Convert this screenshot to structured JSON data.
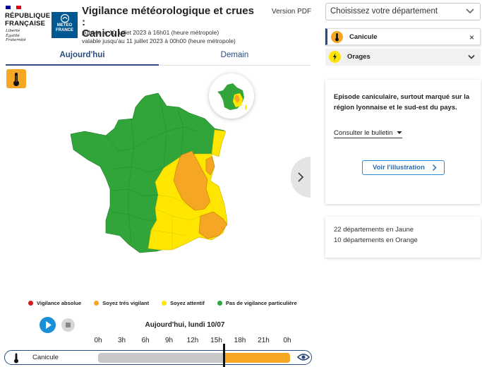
{
  "header": {
    "rf_title_1": "RÉPUBLIQUE",
    "rf_title_2": "FRANÇAISE",
    "rf_motto_1": "Liberté",
    "rf_motto_2": "Égalité",
    "rf_motto_3": "Fraternité",
    "mf_logo_1": "METEO",
    "mf_logo_2": "FRANCE",
    "title_1": "Vigilance météorologique et crues :",
    "title_2": "Canicule",
    "published": "publiée le 10 juillet 2023 à 16h01 (heure métropole)",
    "valid_until": "valable jusqu'au 11 juillet 2023 à 00h00 (heure métropole)",
    "pdf_link": "Version PDF"
  },
  "tabs": [
    {
      "label": "Aujourd'hui",
      "active": true
    },
    {
      "label": "Demain",
      "active": false
    }
  ],
  "colors": {
    "green": "#31a53a",
    "yellow": "#ffe600",
    "orange": "#f5a623",
    "red": "#d01c1f",
    "accent": "#2b4c7e"
  },
  "legend": [
    {
      "label": "Vigilance absolue",
      "color": "#d01c1f"
    },
    {
      "label": "Soyez très vigilant",
      "color": "#f5a623"
    },
    {
      "label": "Soyez attentif",
      "color": "#ffe600"
    },
    {
      "label": "Pas de vigilance particulière",
      "color": "#31a53a"
    }
  ],
  "timeline": {
    "date": "Aujourd'hui, lundi 10/07",
    "ticks": [
      "0h",
      "3h",
      "6h",
      "9h",
      "12h",
      "15h",
      "18h",
      "21h",
      "0h"
    ],
    "row_label": "Canicule",
    "row_icon": "thermometer-icon",
    "current_hour": 16,
    "orange_from_hour": 16,
    "orange_to_hour": 24
  },
  "sidebar": {
    "select_placeholder": "Choisissez votre département",
    "phenomena": [
      {
        "label": "Canicule",
        "icon": "thermometer-icon",
        "icon_color": "#f5a623",
        "action": "×"
      },
      {
        "label": "Orages",
        "icon": "lightning-icon",
        "icon_color": "#ffe600",
        "action": "⌄"
      }
    ],
    "bulletin_text": "Episode caniculaire, surtout marqué sur la région lyonnaise et le sud-est du pays.",
    "bulletin_link": "Consulter le bulletin",
    "illustration_button": "Voir l'illustration",
    "counts": [
      "22 départements en Jaune",
      "10 départements en Orange"
    ]
  }
}
